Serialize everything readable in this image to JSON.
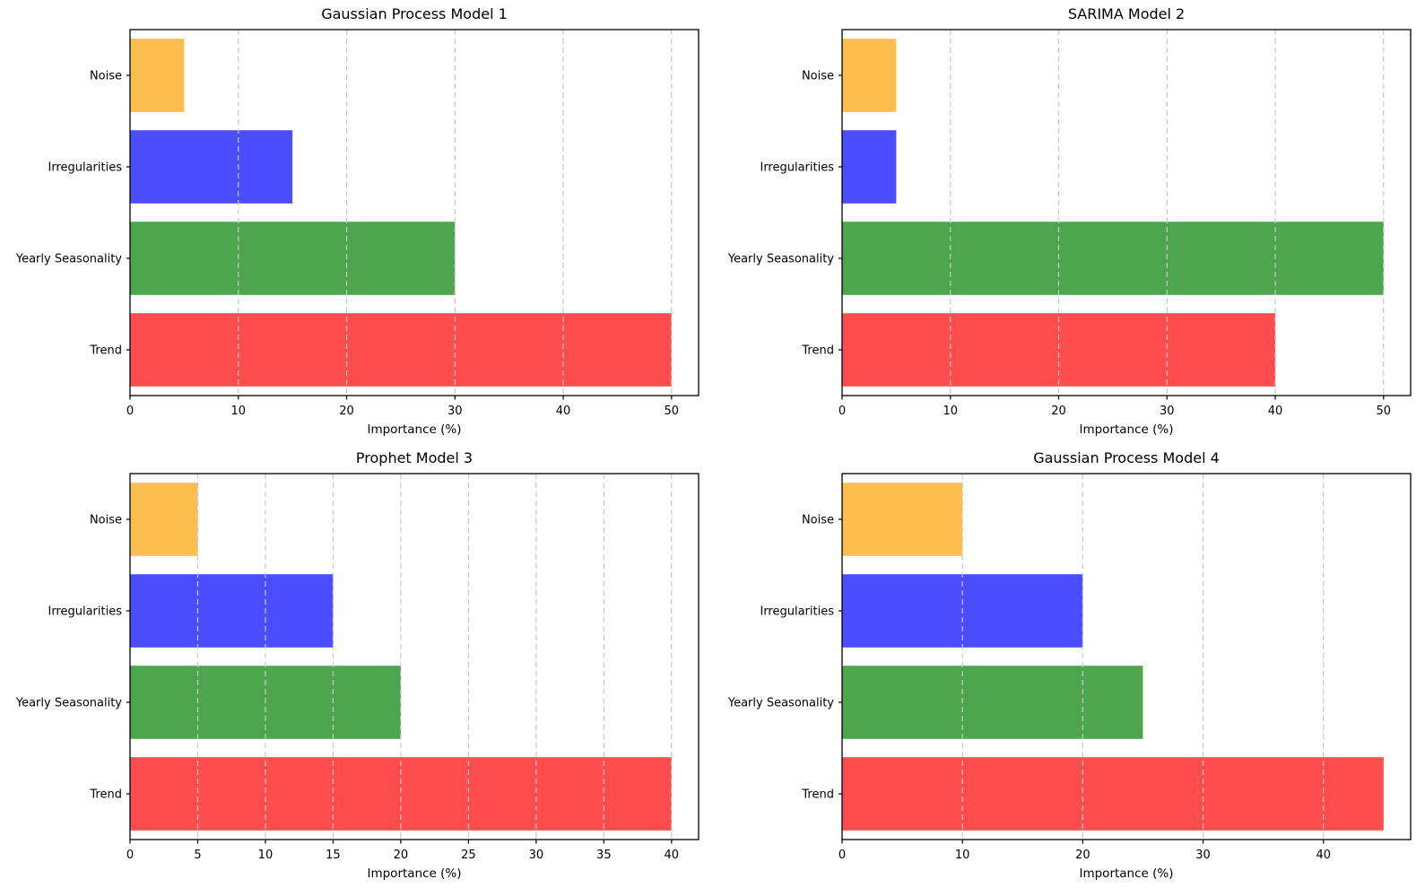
{
  "figure": {
    "background": "#ffffff",
    "rows": 2,
    "cols": 2,
    "grid_color": "#c9c9c9",
    "spine_color": "#000000"
  },
  "chart_data": [
    {
      "type": "bar",
      "orientation": "horizontal",
      "title": "Gaussian Process Model 1",
      "xlabel": "Importance (%)",
      "categories": [
        "Noise",
        "Irregularities",
        "Yearly Seasonality",
        "Trend"
      ],
      "values": [
        5,
        15,
        30,
        50
      ],
      "colors": [
        "#FEBE4E",
        "#4C4DFF",
        "#4DA64D",
        "#FF4D4D"
      ],
      "xticks": [
        0,
        10,
        20,
        30,
        40,
        50
      ],
      "xlim": [
        0,
        52.5
      ],
      "grid": true,
      "legend": false
    },
    {
      "type": "bar",
      "orientation": "horizontal",
      "title": "SARIMA Model 2",
      "xlabel": "Importance (%)",
      "categories": [
        "Noise",
        "Irregularities",
        "Yearly Seasonality",
        "Trend"
      ],
      "values": [
        5,
        5,
        50,
        40
      ],
      "colors": [
        "#FEBE4E",
        "#4C4DFF",
        "#4DA64D",
        "#FF4D4D"
      ],
      "xticks": [
        0,
        10,
        20,
        30,
        40,
        50
      ],
      "xlim": [
        0,
        52.5
      ],
      "grid": true,
      "legend": false
    },
    {
      "type": "bar",
      "orientation": "horizontal",
      "title": "Prophet Model 3",
      "xlabel": "Importance (%)",
      "categories": [
        "Noise",
        "Irregularities",
        "Yearly Seasonality",
        "Trend"
      ],
      "values": [
        5,
        15,
        20,
        40
      ],
      "colors": [
        "#FEBE4E",
        "#4C4DFF",
        "#4DA64D",
        "#FF4D4D"
      ],
      "xticks": [
        0,
        5,
        10,
        15,
        20,
        25,
        30,
        35,
        40
      ],
      "xlim": [
        0,
        42
      ],
      "grid": true,
      "legend": false
    },
    {
      "type": "bar",
      "orientation": "horizontal",
      "title": "Gaussian Process Model 4",
      "xlabel": "Importance (%)",
      "categories": [
        "Noise",
        "Irregularities",
        "Yearly Seasonality",
        "Trend"
      ],
      "values": [
        10,
        20,
        25,
        45
      ],
      "colors": [
        "#FEBE4E",
        "#4C4DFF",
        "#4DA64D",
        "#FF4D4D"
      ],
      "xticks": [
        0,
        10,
        20,
        30,
        40
      ],
      "xlim": [
        0,
        47.25
      ],
      "grid": true,
      "legend": false
    }
  ]
}
